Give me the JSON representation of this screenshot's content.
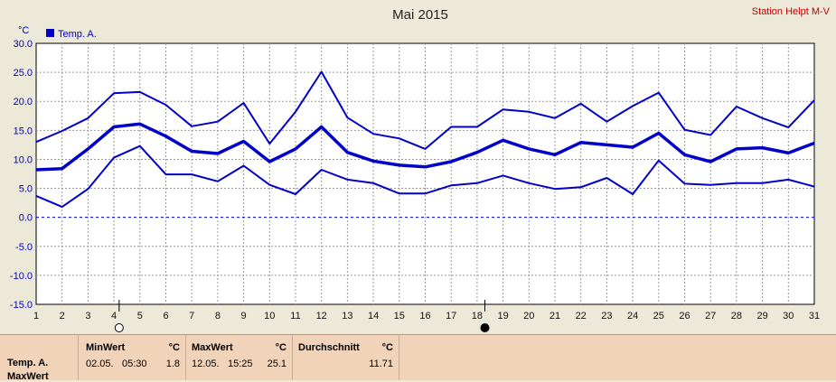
{
  "chart_data": {
    "type": "line",
    "title": "Mai 2015",
    "station": "Station Helpt M-V",
    "ylabel": "°C",
    "legend": {
      "label": "Temp. A.",
      "placement": "top-left"
    },
    "xlim": [
      1,
      31
    ],
    "ylim": [
      -15,
      30
    ],
    "yticks": [
      30,
      25,
      20,
      15,
      10,
      5,
      0,
      -5,
      -10,
      -15
    ],
    "ytick_labels": [
      "30.0",
      "25.0",
      "20.0",
      "15.0",
      "10.0",
      "5.0",
      "0.0",
      "-5.0",
      "-10.0",
      "-15.0"
    ],
    "x": [
      1,
      2,
      3,
      4,
      5,
      6,
      7,
      8,
      9,
      10,
      11,
      12,
      13,
      14,
      15,
      16,
      17,
      18,
      19,
      20,
      21,
      22,
      23,
      24,
      25,
      26,
      27,
      28,
      29,
      30,
      31
    ],
    "grid": true,
    "moon_markers": [
      {
        "day": 4.2,
        "phase": "full"
      },
      {
        "day": 18.3,
        "phase": "new"
      }
    ],
    "series": [
      {
        "role": "max",
        "color": "#0000C8",
        "width": 2,
        "values": [
          13.0,
          14.9,
          17.1,
          21.4,
          21.6,
          19.4,
          15.7,
          16.5,
          19.7,
          12.7,
          18.2,
          25.1,
          17.2,
          14.4,
          13.6,
          11.8,
          15.6,
          15.6,
          18.6,
          18.2,
          17.1,
          19.6,
          16.5,
          19.2,
          21.5,
          15.1,
          14.2,
          19.1,
          17.1,
          15.5,
          20.2
        ]
      },
      {
        "role": "avg",
        "color": "#0000C8",
        "width": 3.5,
        "values": [
          8.2,
          8.4,
          11.8,
          15.6,
          16.1,
          14.0,
          11.4,
          11.0,
          13.1,
          9.6,
          11.8,
          15.6,
          11.2,
          9.7,
          9.0,
          8.7,
          9.6,
          11.2,
          13.3,
          11.8,
          10.8,
          12.9,
          12.5,
          12.1,
          14.5,
          10.8,
          9.6,
          11.8,
          12.0,
          11.1,
          12.8
        ]
      },
      {
        "role": "min",
        "color": "#0000C8",
        "width": 2,
        "values": [
          3.7,
          1.8,
          4.9,
          10.3,
          12.3,
          7.4,
          7.4,
          6.2,
          8.9,
          5.6,
          4.0,
          8.2,
          6.5,
          5.9,
          4.1,
          4.1,
          5.5,
          5.9,
          7.2,
          5.9,
          4.9,
          5.2,
          6.8,
          4.0,
          9.8,
          5.8,
          5.6,
          5.9,
          5.9,
          6.5,
          5.3
        ]
      }
    ],
    "dashed_zero_line": true
  },
  "stats": {
    "row_label_1": "Temp. A.",
    "row_label_2": "MaxWert",
    "min": {
      "header": "MinWert",
      "unit": "°C",
      "date": "02.05.",
      "time": "05:30",
      "value": "1.8"
    },
    "max": {
      "header": "MaxWert",
      "unit": "°C",
      "date": "12.05.",
      "time": "15:25",
      "value": "25.1"
    },
    "avg": {
      "header": "Durchschnitt",
      "unit": "°C",
      "value": "11.71"
    }
  },
  "colors": {
    "series": "#0000C8",
    "panel": "#F1D3B9",
    "background": "#ECE9D8",
    "station": "#C00000"
  }
}
